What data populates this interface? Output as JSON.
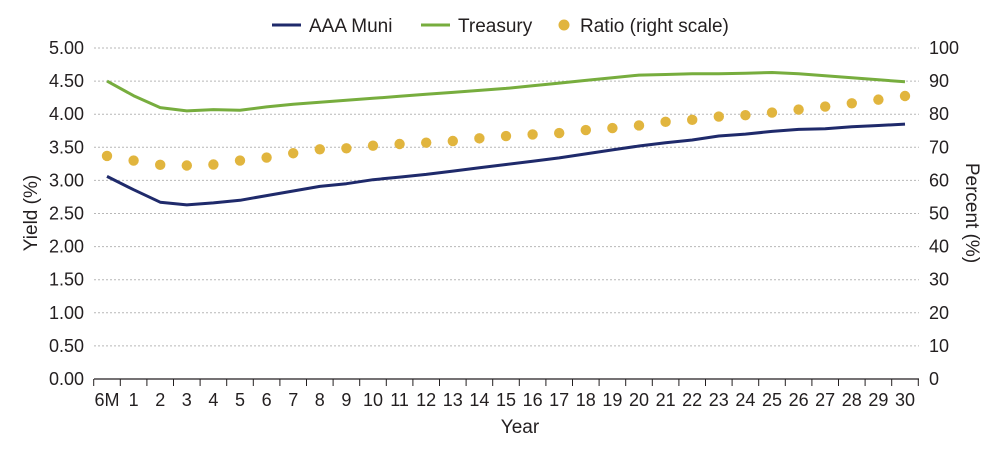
{
  "chart_data": {
    "type": "line",
    "title": "",
    "xlabel": "Year",
    "ylabel": "Yield (%)",
    "y2label": "Percent (%)",
    "categories": [
      "6M",
      "1",
      "2",
      "3",
      "4",
      "5",
      "6",
      "7",
      "8",
      "9",
      "10",
      "11",
      "12",
      "13",
      "14",
      "15",
      "16",
      "17",
      "18",
      "19",
      "20",
      "21",
      "22",
      "23",
      "24",
      "25",
      "26",
      "27",
      "28",
      "29",
      "30"
    ],
    "ylim": [
      0,
      5
    ],
    "y_ticks": [
      "0.00",
      "0.50",
      "1.00",
      "1.50",
      "2.00",
      "2.50",
      "3.00",
      "3.50",
      "4.00",
      "4.50",
      "5.00"
    ],
    "y2lim": [
      0,
      100
    ],
    "y2_ticks": [
      "0",
      "10",
      "20",
      "30",
      "40",
      "50",
      "60",
      "70",
      "80",
      "90",
      "100"
    ],
    "grid": "horizontal dashed",
    "legend_position": "top",
    "series": [
      {
        "name": "AAA Muni",
        "kind": "line",
        "axis": "left",
        "color": "#1f2a6b",
        "values": [
          3.06,
          2.86,
          2.67,
          2.63,
          2.66,
          2.7,
          2.77,
          2.84,
          2.91,
          2.95,
          3.01,
          3.05,
          3.09,
          3.14,
          3.19,
          3.24,
          3.29,
          3.34,
          3.4,
          3.46,
          3.52,
          3.57,
          3.61,
          3.67,
          3.7,
          3.74,
          3.77,
          3.78,
          3.81,
          3.83,
          3.85
        ]
      },
      {
        "name": "Treasury",
        "kind": "line",
        "axis": "left",
        "color": "#77ad3e",
        "values": [
          4.5,
          4.28,
          4.1,
          4.05,
          4.07,
          4.06,
          4.11,
          4.15,
          4.18,
          4.21,
          4.24,
          4.27,
          4.3,
          4.33,
          4.36,
          4.39,
          4.43,
          4.47,
          4.51,
          4.55,
          4.59,
          4.6,
          4.61,
          4.61,
          4.62,
          4.63,
          4.61,
          4.58,
          4.55,
          4.52,
          4.49
        ]
      },
      {
        "name": "Ratio (right scale)",
        "kind": "scatter",
        "axis": "right",
        "color": "#e1b53e",
        "values": [
          67.4,
          66.0,
          64.7,
          64.5,
          64.8,
          66.0,
          66.9,
          68.2,
          69.4,
          69.7,
          70.5,
          71.0,
          71.4,
          71.9,
          72.7,
          73.4,
          73.9,
          74.3,
          75.2,
          75.8,
          76.6,
          77.7,
          78.3,
          79.3,
          79.7,
          80.5,
          81.4,
          82.3,
          83.3,
          84.4,
          85.5
        ]
      }
    ]
  }
}
